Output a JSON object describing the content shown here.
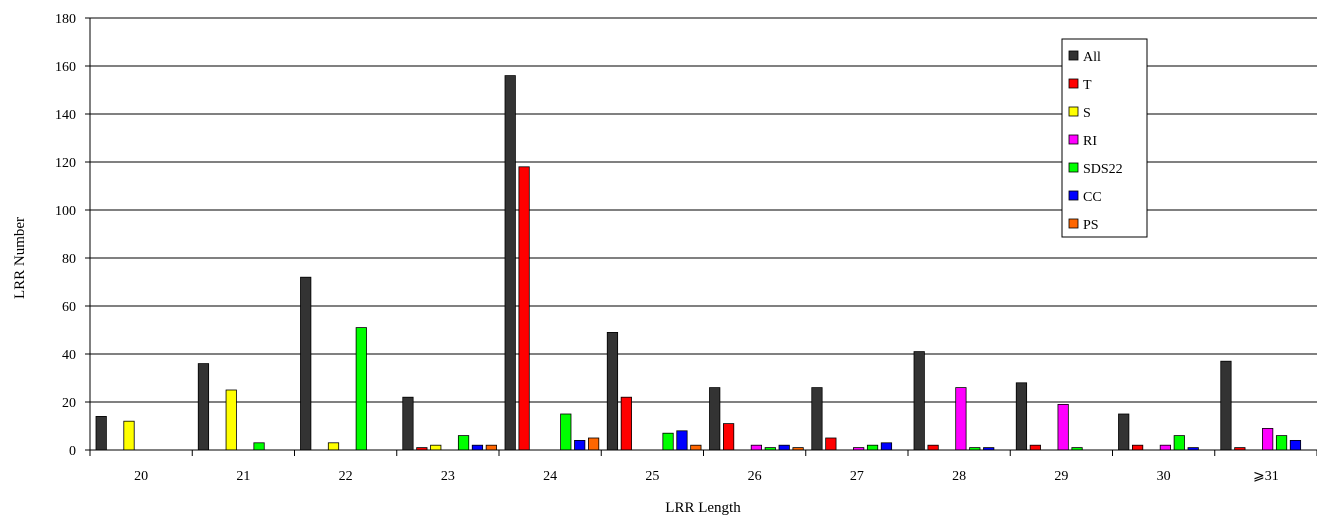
{
  "chart_data": {
    "type": "bar",
    "title": "",
    "xlabel": "LRR Length",
    "ylabel": "LRR Number",
    "ylim": [
      0,
      180
    ],
    "yticks": [
      0,
      20,
      40,
      60,
      80,
      100,
      120,
      140,
      160,
      180
    ],
    "grid": "horizontal",
    "legend_position": "top-right",
    "categories": [
      "20",
      "21",
      "22",
      "23",
      "24",
      "25",
      "26",
      "27",
      "28",
      "29",
      "30",
      "⩾31"
    ],
    "series": [
      {
        "name": "All",
        "color": "#333333",
        "values": [
          14,
          36,
          72,
          22,
          156,
          49,
          26,
          26,
          41,
          28,
          15,
          37
        ]
      },
      {
        "name": "T",
        "color": "#ff0000",
        "values": [
          0,
          0,
          0,
          1,
          118,
          22,
          11,
          5,
          2,
          2,
          2,
          1
        ]
      },
      {
        "name": "S",
        "color": "#ffff00",
        "values": [
          12,
          25,
          3,
          2,
          0,
          0,
          0,
          0,
          0,
          0,
          0,
          0
        ]
      },
      {
        "name": "RI",
        "color": "#ff00ff",
        "values": [
          0,
          0,
          0,
          0,
          0,
          0,
          2,
          1,
          26,
          19,
          2,
          9
        ]
      },
      {
        "name": "SDS22",
        "color": "#00ff00",
        "values": [
          0,
          3,
          51,
          6,
          15,
          7,
          1,
          2,
          1,
          1,
          6,
          6
        ]
      },
      {
        "name": "CC",
        "color": "#0000ff",
        "values": [
          0,
          0,
          0,
          2,
          4,
          8,
          2,
          3,
          1,
          0,
          1,
          4
        ]
      },
      {
        "name": "PS",
        "color": "#ff6600",
        "values": [
          0,
          0,
          0,
          2,
          5,
          2,
          1,
          0,
          0,
          0,
          0,
          0
        ]
      }
    ]
  }
}
